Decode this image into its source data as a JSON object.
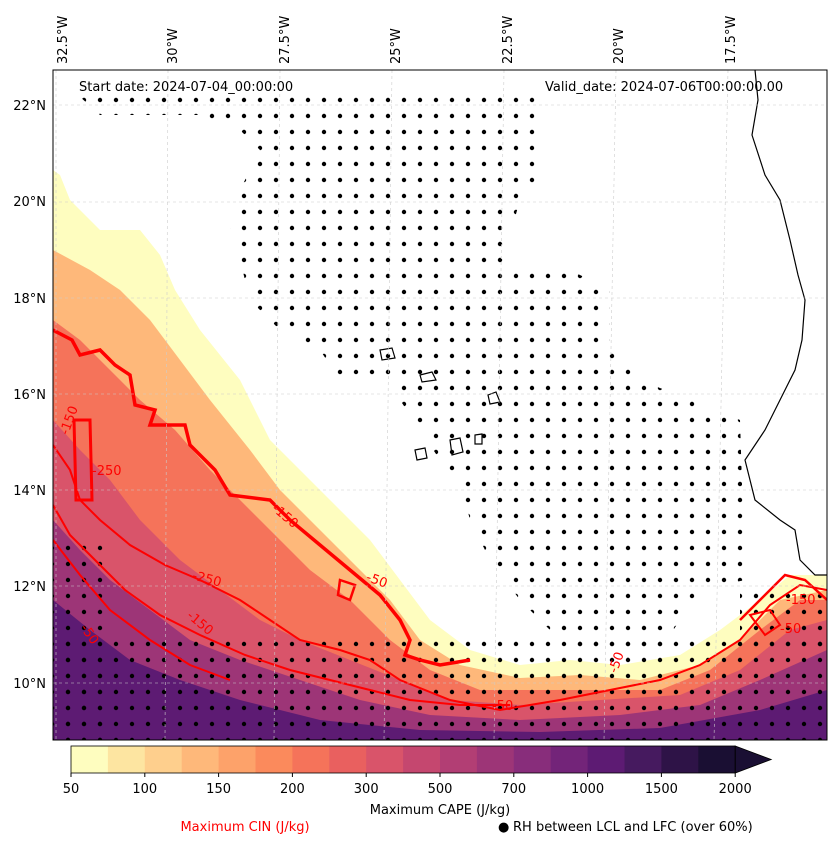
{
  "map": {
    "start_date": "Start date: 2024-07-04_00:00:00",
    "valid_date": "Valid_date: 2024-07-06T00:00:00.00",
    "lon_labels": [
      "32.5°W",
      "30°W",
      "27.5°W",
      "25°W",
      "22.5°W",
      "20°W",
      "17.5°W"
    ],
    "lat_labels": [
      "22°N",
      "20°N",
      "18°N",
      "16°N",
      "14°N",
      "12°N",
      "10°N"
    ],
    "cin_contour_labels": [
      "-150",
      "-250",
      "-150",
      "-250",
      "-150",
      "-50",
      "-50",
      "-50",
      "-150",
      "-50",
      "-50"
    ]
  },
  "colorbar": {
    "title": "Maximum CAPE (J/kg)",
    "ticks": [
      "50",
      "100",
      "150",
      "200",
      "300",
      "500",
      "700",
      "1000",
      "1500",
      "2000"
    ],
    "colors": [
      "#fefdbf",
      "#fde5a1",
      "#fecf8d",
      "#feb87a",
      "#fda26a",
      "#fb8a5c",
      "#f5735a",
      "#e9605f",
      "#d9546a",
      "#c5476f",
      "#b23e74",
      "#9d3577",
      "#882d7b",
      "#732479",
      "#5d1b73",
      "#461a5f",
      "#2e1347",
      "#1a0f33"
    ]
  },
  "legend": {
    "cin_label": "Maximum CIN (J/kg)",
    "cin_color": "#ff0000",
    "rh_label": "RH between LCL and LFC (over 60%)",
    "rh_marker": "●"
  }
}
